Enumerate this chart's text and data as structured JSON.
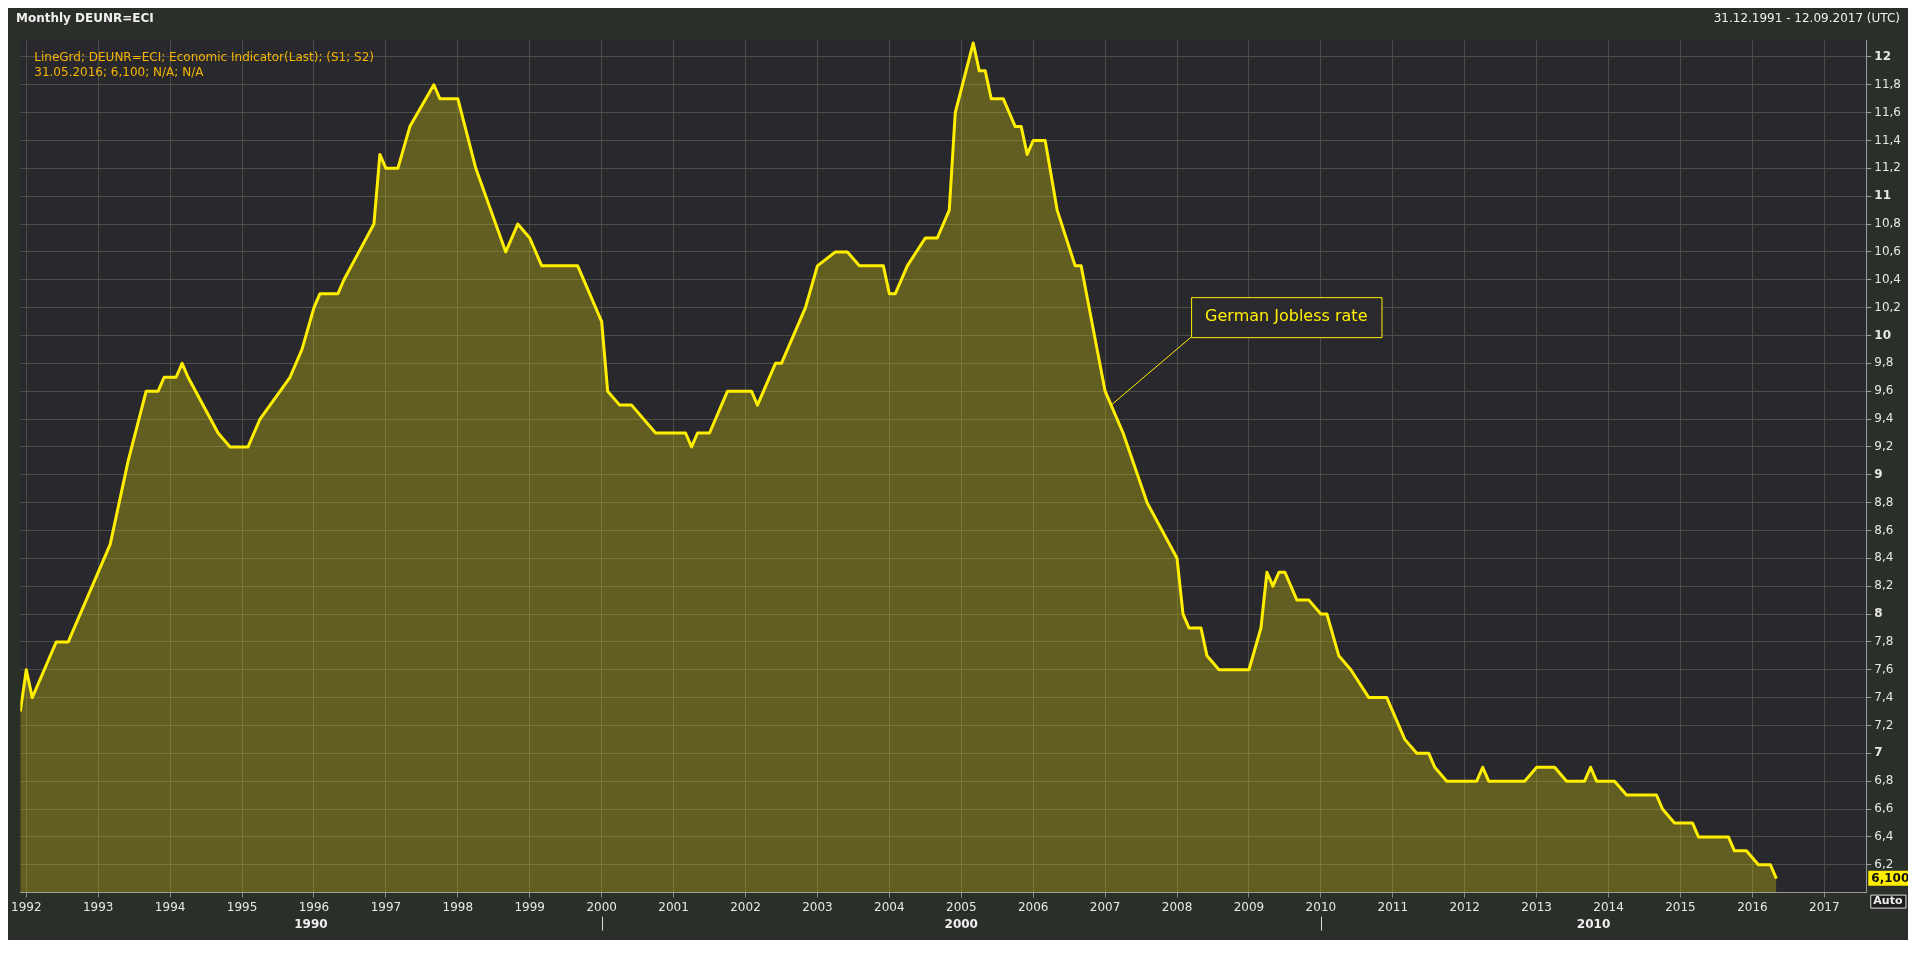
{
  "chart_data": {
    "type": "area",
    "title": "Monthly DEUNR=ECI",
    "subtitle": "31.12.1991 - 12.09.2017 (UTC)",
    "annotations": [
      "LineGrd; DEUNR=ECI; Economic Indicator(Last); (S1; S2)",
      "31.05.2016; 6,100; N/A; N/A",
      "6,100",
      "Auto",
      "1990",
      "2000",
      "2010",
      {
        "text": "German Jobless rate",
        "x": "2007-02",
        "y": 9.5
      }
    ],
    "x": [
      "1991-12",
      "1992-01",
      "1992-02",
      "1992-04",
      "1992-06",
      "1992-08",
      "1993-03",
      "1993-06",
      "1993-09",
      "1993-11",
      "1993-12",
      "1994-02",
      "1994-03",
      "1994-04",
      "1994-09",
      "1994-11",
      "1995-02",
      "1995-04",
      "1995-09",
      "1995-11",
      "1996-01",
      "1996-02",
      "1996-05",
      "1996-06",
      "1996-11",
      "1996-12",
      "1997-01",
      "1997-03",
      "1997-05",
      "1997-09",
      "1997-10",
      "1998-01",
      "1998-04",
      "1998-09",
      "1998-11",
      "1999-01",
      "1999-02",
      "1999-03",
      "1999-09",
      "2000-01",
      "2000-02",
      "2000-04",
      "2000-06",
      "2000-10",
      "2001-03",
      "2001-04",
      "2001-05",
      "2001-07",
      "2001-10",
      "2002-02",
      "2002-03",
      "2002-06",
      "2002-07",
      "2002-11",
      "2003-01",
      "2003-04",
      "2003-06",
      "2003-08",
      "2003-12",
      "2004-01",
      "2004-02",
      "2004-04",
      "2004-07",
      "2004-09",
      "2004-11",
      "2004-12",
      "2005-03",
      "2005-04",
      "2005-05",
      "2005-06",
      "2005-08",
      "2005-10",
      "2005-11",
      "2005-12",
      "2006-01",
      "2006-03",
      "2006-05",
      "2006-08",
      "2006-09",
      "2007-01",
      "2007-04",
      "2007-08",
      "2008-01",
      "2008-02",
      "2008-03",
      "2008-05",
      "2008-06",
      "2008-08",
      "2009-01",
      "2009-03",
      "2009-04",
      "2009-05",
      "2009-06",
      "2009-07",
      "2009-08",
      "2009-09",
      "2009-11",
      "2010-01",
      "2010-02",
      "2010-04",
      "2010-06",
      "2010-09",
      "2010-12",
      "2011-03",
      "2011-05",
      "2011-07",
      "2011-08",
      "2011-10",
      "2012-03",
      "2012-04",
      "2012-05",
      "2012-11",
      "2013-01",
      "2013-04",
      "2013-06",
      "2013-09",
      "2013-10",
      "2013-11",
      "2014-02",
      "2014-04",
      "2014-09",
      "2014-10",
      "2014-12",
      "2015-03",
      "2015-04",
      "2015-09",
      "2015-10",
      "2015-12",
      "2016-02",
      "2016-04",
      "2016-05"
    ],
    "series": [
      {
        "color": "#ffee00",
        "values": [
          7.3,
          7.6,
          7.4,
          7.6,
          7.8,
          7.8,
          8.5,
          9.1,
          9.6,
          9.6,
          9.7,
          9.7,
          9.8,
          9.7,
          9.3,
          9.2,
          9.2,
          9.4,
          9.7,
          9.9,
          10.2,
          10.3,
          10.3,
          10.4,
          10.8,
          11.3,
          11.2,
          11.2,
          11.5,
          11.8,
          11.7,
          11.7,
          11.2,
          10.6,
          10.8,
          10.7,
          10.6,
          10.5,
          10.5,
          10.1,
          9.6,
          9.5,
          9.5,
          9.3,
          9.3,
          9.2,
          9.3,
          9.3,
          9.6,
          9.6,
          9.5,
          9.8,
          9.8,
          10.2,
          10.5,
          10.6,
          10.6,
          10.5,
          10.5,
          10.3,
          10.3,
          10.5,
          10.7,
          10.7,
          10.9,
          11.6,
          12.1,
          11.9,
          11.9,
          11.7,
          11.7,
          11.5,
          11.5,
          11.3,
          11.4,
          11.4,
          10.9,
          10.5,
          10.5,
          9.6,
          9.3,
          8.8,
          8.4,
          8.0,
          7.9,
          7.9,
          7.7,
          7.6,
          7.6,
          7.9,
          8.3,
          8.2,
          8.3,
          8.3,
          8.2,
          8.1,
          8.1,
          8.0,
          8.0,
          7.7,
          7.6,
          7.4,
          7.4,
          7.1,
          7.0,
          7.0,
          6.9,
          6.8,
          6.8,
          6.9,
          6.8,
          6.8,
          6.9,
          6.9,
          6.8,
          6.8,
          6.9,
          6.8,
          6.8,
          6.7,
          6.7,
          6.6,
          6.5,
          6.5,
          6.4,
          6.4,
          6.3,
          6.3,
          6.2,
          6.2,
          6.1
        ]
      }
    ],
    "xlim": [
      "1991-12",
      "2017-08"
    ],
    "xticks": [
      "1992",
      "1993",
      "1994",
      "1995",
      "1996",
      "1997",
      "1998",
      "1999",
      "2000",
      "2001",
      "2002",
      "2003",
      "2004",
      "2005",
      "2006",
      "2007",
      "2008",
      "2009",
      "2010",
      "2011",
      "2012",
      "2013",
      "2014",
      "2015",
      "2016",
      "2017"
    ],
    "ylim": [
      6.0,
      12.12
    ],
    "yticks": [
      {
        "value": 6.2,
        "label": "6,2"
      },
      {
        "value": 6.4,
        "label": "6,4"
      },
      {
        "value": 6.6,
        "label": "6,6"
      },
      {
        "value": 6.8,
        "label": "6,8"
      },
      {
        "value": 7,
        "label": "7"
      },
      {
        "value": 7.2,
        "label": "7,2"
      },
      {
        "value": 7.4,
        "label": "7,4"
      },
      {
        "value": 7.6,
        "label": "7,6"
      },
      {
        "value": 7.8,
        "label": "7,8"
      },
      {
        "value": 8,
        "label": "8"
      },
      {
        "value": 8.2,
        "label": "8,2"
      },
      {
        "value": 8.4,
        "label": "8,4"
      },
      {
        "value": 8.6,
        "label": "8,6"
      },
      {
        "value": 8.8,
        "label": "8,8"
      },
      {
        "value": 9,
        "label": "9"
      },
      {
        "value": 9.2,
        "label": "9,2"
      },
      {
        "value": 9.4,
        "label": "9,4"
      },
      {
        "value": 9.6,
        "label": "9,6"
      },
      {
        "value": 9.8,
        "label": "9,8"
      },
      {
        "value": 10,
        "label": "10"
      },
      {
        "value": 10.2,
        "label": "10,2"
      },
      {
        "value": 10.4,
        "label": "10,4"
      },
      {
        "value": 10.6,
        "label": "10,6"
      },
      {
        "value": 10.8,
        "label": "10,8"
      },
      {
        "value": 11,
        "label": "11"
      },
      {
        "value": 11.2,
        "label": "11,2"
      },
      {
        "value": 11.4,
        "label": "11,4"
      },
      {
        "value": 11.6,
        "label": "11,6"
      },
      {
        "value": 11.8,
        "label": "11,8"
      },
      {
        "value": 12,
        "label": "12"
      }
    ],
    "grid": true,
    "legend": false,
    "marker": "none",
    "line_style": "solid"
  }
}
